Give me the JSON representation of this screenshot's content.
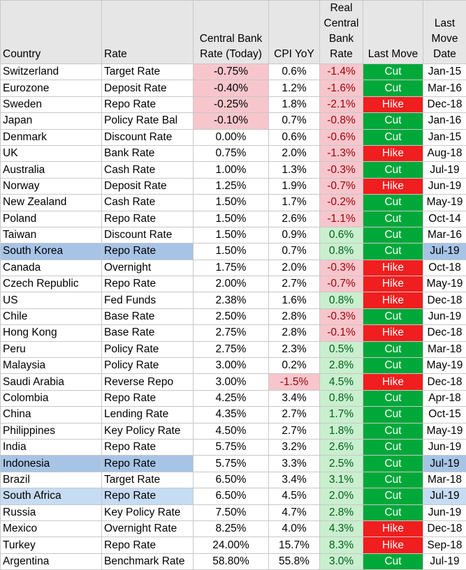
{
  "headers": {
    "country": "Country",
    "rate": "Rate",
    "cb_rate": [
      "Central Bank",
      "Rate (Today)"
    ],
    "cpi": "CPI YoY",
    "real_rate": [
      "Real",
      "Central",
      "Bank",
      "Rate"
    ],
    "last_move": "Last Move",
    "last_move_date": [
      "Last",
      "Move",
      "Date"
    ]
  },
  "colors": {
    "cut": "#00a83a",
    "hike": "#f01e1e",
    "negative_fill": "#f7c6cc",
    "positive_fill": "#c9efce",
    "highlight_row": "#a7c4e6",
    "header_fill": "#e6e6e6"
  },
  "rows": [
    {
      "country": "Switzerland",
      "rate": "Target Rate",
      "cb_rate": "-0.75%",
      "cpi": "0.6%",
      "real": "-1.4%",
      "move": "Cut",
      "date": "Jan-15"
    },
    {
      "country": "Eurozone",
      "rate": "Deposit Rate",
      "cb_rate": "-0.40%",
      "cpi": "1.2%",
      "real": "-1.6%",
      "move": "Cut",
      "date": "Mar-16"
    },
    {
      "country": "Sweden",
      "rate": "Repo Rate",
      "cb_rate": "-0.25%",
      "cpi": "1.8%",
      "real": "-2.1%",
      "move": "Hike",
      "date": "Dec-18"
    },
    {
      "country": "Japan",
      "rate": "Policy Rate Bal",
      "cb_rate": "-0.10%",
      "cpi": "0.7%",
      "real": "-0.8%",
      "move": "Cut",
      "date": "Jan-16"
    },
    {
      "country": "Denmark",
      "rate": "Discount Rate",
      "cb_rate": "0.00%",
      "cpi": "0.6%",
      "real": "-0.6%",
      "move": "Cut",
      "date": "Jan-15"
    },
    {
      "country": "UK",
      "rate": "Bank Rate",
      "cb_rate": "0.75%",
      "cpi": "2.0%",
      "real": "-1.3%",
      "move": "Hike",
      "date": "Aug-18"
    },
    {
      "country": "Australia",
      "rate": "Cash Rate",
      "cb_rate": "1.00%",
      "cpi": "1.3%",
      "real": "-0.3%",
      "move": "Cut",
      "date": "Jul-19"
    },
    {
      "country": "Norway",
      "rate": "Deposit Rate",
      "cb_rate": "1.25%",
      "cpi": "1.9%",
      "real": "-0.7%",
      "move": "Hike",
      "date": "Jun-19"
    },
    {
      "country": "New Zealand",
      "rate": "Cash Rate",
      "cb_rate": "1.50%",
      "cpi": "1.7%",
      "real": "-0.2%",
      "move": "Cut",
      "date": "May-19"
    },
    {
      "country": "Poland",
      "rate": "Repo Rate",
      "cb_rate": "1.50%",
      "cpi": "2.6%",
      "real": "-1.1%",
      "move": "Cut",
      "date": "Oct-14"
    },
    {
      "country": "Taiwan",
      "rate": "Discount Rate",
      "cb_rate": "1.50%",
      "cpi": "0.9%",
      "real": "0.6%",
      "move": "Cut",
      "date": "Mar-16"
    },
    {
      "country": "South Korea",
      "rate": "Repo Rate",
      "cb_rate": "1.50%",
      "cpi": "0.7%",
      "real": "0.8%",
      "move": "Cut",
      "date": "Jul-19"
    },
    {
      "country": "Canada",
      "rate": "Overnight",
      "cb_rate": "1.75%",
      "cpi": "2.0%",
      "real": "-0.3%",
      "move": "Hike",
      "date": "Oct-18"
    },
    {
      "country": "Czech Republic",
      "rate": "Repo Rate",
      "cb_rate": "2.00%",
      "cpi": "2.7%",
      "real": "-0.7%",
      "move": "Hike",
      "date": "May-19"
    },
    {
      "country": "US",
      "rate": "Fed Funds",
      "cb_rate": "2.38%",
      "cpi": "1.6%",
      "real": "0.8%",
      "move": "Hike",
      "date": "Dec-18"
    },
    {
      "country": "Chile",
      "rate": "Base Rate",
      "cb_rate": "2.50%",
      "cpi": "2.8%",
      "real": "-0.3%",
      "move": "Cut",
      "date": "Jun-19"
    },
    {
      "country": "Hong Kong",
      "rate": "Base Rate",
      "cb_rate": "2.75%",
      "cpi": "2.8%",
      "real": "-0.1%",
      "move": "Hike",
      "date": "Dec-18"
    },
    {
      "country": "Peru",
      "rate": "Policy Rate",
      "cb_rate": "2.75%",
      "cpi": "2.3%",
      "real": "0.5%",
      "move": "Cut",
      "date": "Mar-18"
    },
    {
      "country": "Malaysia",
      "rate": "Policy Rate",
      "cb_rate": "3.00%",
      "cpi": "0.2%",
      "real": "2.8%",
      "move": "Cut",
      "date": "May-19"
    },
    {
      "country": "Saudi Arabia",
      "rate": "Reverse Repo",
      "cb_rate": "3.00%",
      "cpi": "-1.5%",
      "real": "4.5%",
      "move": "Hike",
      "date": "Dec-18"
    },
    {
      "country": "Colombia",
      "rate": "Repo Rate",
      "cb_rate": "4.25%",
      "cpi": "3.4%",
      "real": "0.8%",
      "move": "Cut",
      "date": "Apr-18"
    },
    {
      "country": "China",
      "rate": "Lending Rate",
      "cb_rate": "4.35%",
      "cpi": "2.7%",
      "real": "1.7%",
      "move": "Cut",
      "date": "Oct-15"
    },
    {
      "country": "Philippines",
      "rate": "Key Policy Rate",
      "cb_rate": "4.50%",
      "cpi": "2.7%",
      "real": "1.8%",
      "move": "Cut",
      "date": "May-19"
    },
    {
      "country": "India",
      "rate": "Repo Rate",
      "cb_rate": "5.75%",
      "cpi": "3.2%",
      "real": "2.6%",
      "move": "Cut",
      "date": "Jun-19"
    },
    {
      "country": "Indonesia",
      "rate": "Repo Rate",
      "cb_rate": "5.75%",
      "cpi": "3.3%",
      "real": "2.5%",
      "move": "Cut",
      "date": "Jul-19"
    },
    {
      "country": "Brazil",
      "rate": "Target Rate",
      "cb_rate": "6.50%",
      "cpi": "3.4%",
      "real": "3.1%",
      "move": "Cut",
      "date": "Mar-18"
    },
    {
      "country": "South Africa",
      "rate": "Repo Rate",
      "cb_rate": "6.50%",
      "cpi": "4.5%",
      "real": "2.0%",
      "move": "Cut",
      "date": "Jul-19"
    },
    {
      "country": "Russia",
      "rate": "Key Policy Rate",
      "cb_rate": "7.50%",
      "cpi": "4.7%",
      "real": "2.8%",
      "move": "Cut",
      "date": "Jun-19"
    },
    {
      "country": "Mexico",
      "rate": "Overnight Rate",
      "cb_rate": "8.25%",
      "cpi": "4.0%",
      "real": "4.3%",
      "move": "Hike",
      "date": "Dec-18"
    },
    {
      "country": "Turkey",
      "rate": "Repo Rate",
      "cb_rate": "24.00%",
      "cpi": "15.7%",
      "real": "8.3%",
      "move": "Hike",
      "date": "Sep-18"
    },
    {
      "country": "Argentina",
      "rate": "Benchmark Rate",
      "cb_rate": "58.80%",
      "cpi": "55.8%",
      "real": "3.0%",
      "move": "Cut",
      "date": "Jul-19"
    }
  ]
}
